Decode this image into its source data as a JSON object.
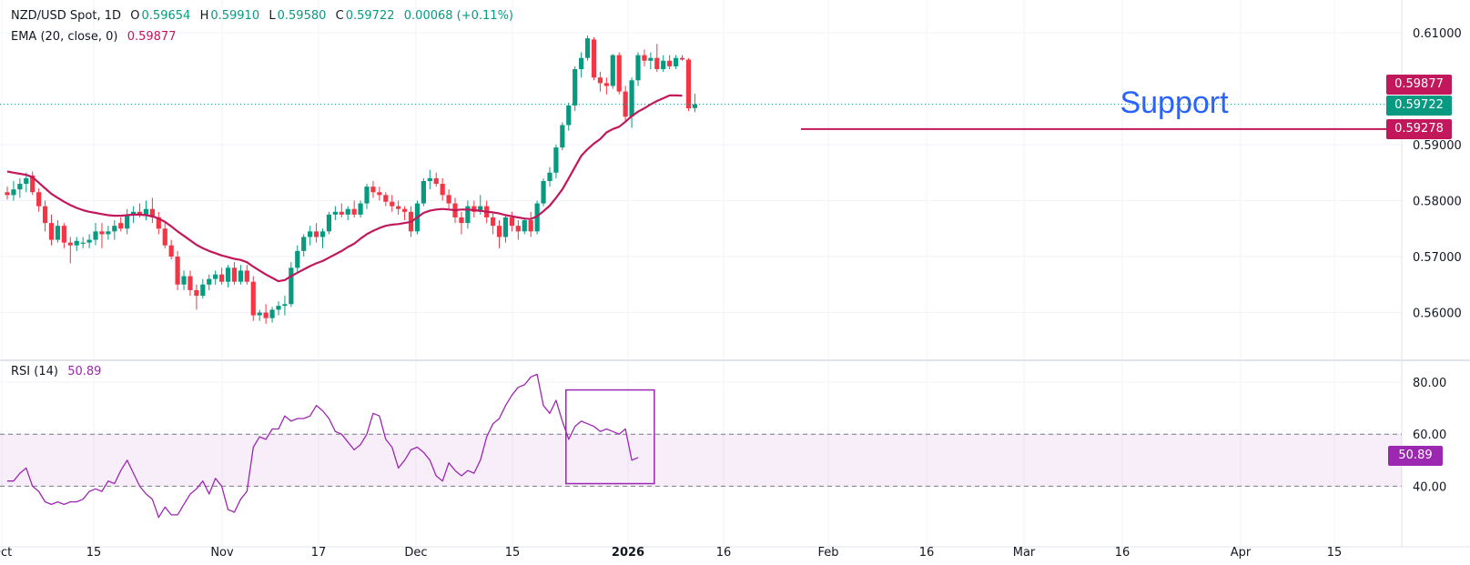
{
  "header": {
    "symbol": "NZD/USD Spot, 1D",
    "o_label": "O",
    "o_value": "0.59654",
    "h_label": "H",
    "h_value": "0.59910",
    "l_label": "L",
    "l_value": "0.59580",
    "c_label": "C",
    "c_value": "0.59722",
    "change": "0.00068 (+0.11%)",
    "ema_label": "EMA (20, close, 0)",
    "ema_value": "0.59877",
    "rsi_label": "RSI (14)",
    "rsi_value": "50.89"
  },
  "colors": {
    "up": "#089981",
    "down": "#f23645",
    "ema": "#c2185b",
    "rsi": "#9c27b0",
    "annotation": "#2962ff"
  },
  "chart_data": {
    "type": "candlestick",
    "price_axis": {
      "ticks": [
        "0.61000",
        "0.59000",
        "0.58000",
        "0.57000",
        "0.56000"
      ],
      "range": [
        0.554,
        0.6128
      ]
    },
    "rsi_axis": {
      "ticks": [
        "80.00",
        "60.00",
        "40.00"
      ],
      "range": [
        20,
        90
      ],
      "band": [
        40,
        60
      ]
    },
    "x_tick_labels": [
      "Oct",
      "15",
      "Nov",
      "17",
      "Dec",
      "15",
      "2026",
      "16",
      "Feb",
      "16",
      "Mar",
      "16",
      "Apr",
      "15"
    ],
    "price_tags": {
      "ema": "0.59877",
      "last": "0.59722",
      "support": "0.59278"
    },
    "support_level": 0.59278,
    "support_label": "Support",
    "last_close": 0.59722,
    "ohlc": [
      [
        0.5815,
        0.5825,
        0.5802,
        0.581
      ],
      [
        0.581,
        0.5835,
        0.58,
        0.582
      ],
      [
        0.582,
        0.584,
        0.5805,
        0.583
      ],
      [
        0.583,
        0.585,
        0.5815,
        0.584
      ],
      [
        0.5845,
        0.5852,
        0.581,
        0.5815
      ],
      [
        0.5815,
        0.5822,
        0.578,
        0.579
      ],
      [
        0.579,
        0.58,
        0.5745,
        0.576
      ],
      [
        0.576,
        0.5775,
        0.572,
        0.573
      ],
      [
        0.573,
        0.5765,
        0.5725,
        0.5755
      ],
      [
        0.5755,
        0.576,
        0.5715,
        0.5725
      ],
      [
        0.5725,
        0.5735,
        0.5688,
        0.572
      ],
      [
        0.572,
        0.5735,
        0.571,
        0.5728
      ],
      [
        0.5725,
        0.5735,
        0.5715,
        0.5725
      ],
      [
        0.5725,
        0.574,
        0.5715,
        0.573
      ],
      [
        0.573,
        0.576,
        0.572,
        0.5745
      ],
      [
        0.5745,
        0.576,
        0.5715,
        0.574
      ],
      [
        0.574,
        0.5755,
        0.573,
        0.5745
      ],
      [
        0.5745,
        0.5765,
        0.573,
        0.5755
      ],
      [
        0.576,
        0.577,
        0.5745,
        0.575
      ],
      [
        0.575,
        0.5785,
        0.574,
        0.5775
      ],
      [
        0.5775,
        0.579,
        0.576,
        0.578
      ],
      [
        0.578,
        0.5795,
        0.577,
        0.5775
      ],
      [
        0.5775,
        0.58,
        0.5765,
        0.5785
      ],
      [
        0.5785,
        0.5805,
        0.576,
        0.577
      ],
      [
        0.577,
        0.578,
        0.574,
        0.575
      ],
      [
        0.575,
        0.576,
        0.5715,
        0.572
      ],
      [
        0.572,
        0.573,
        0.5695,
        0.57
      ],
      [
        0.57,
        0.571,
        0.564,
        0.565
      ],
      [
        0.565,
        0.5675,
        0.564,
        0.5665
      ],
      [
        0.5665,
        0.5675,
        0.563,
        0.564
      ],
      [
        0.564,
        0.565,
        0.5605,
        0.563
      ],
      [
        0.563,
        0.566,
        0.5625,
        0.565
      ],
      [
        0.565,
        0.5668,
        0.564,
        0.566
      ],
      [
        0.566,
        0.5675,
        0.565,
        0.5668
      ],
      [
        0.5668,
        0.568,
        0.565,
        0.5655
      ],
      [
        0.5655,
        0.5685,
        0.5645,
        0.568
      ],
      [
        0.568,
        0.569,
        0.565,
        0.5655
      ],
      [
        0.5655,
        0.5685,
        0.565,
        0.5675
      ],
      [
        0.5675,
        0.5685,
        0.565,
        0.5655
      ],
      [
        0.5655,
        0.5665,
        0.5585,
        0.5595
      ],
      [
        0.5595,
        0.5605,
        0.5585,
        0.56
      ],
      [
        0.56,
        0.5615,
        0.558,
        0.559
      ],
      [
        0.559,
        0.561,
        0.5582,
        0.5605
      ],
      [
        0.5605,
        0.562,
        0.5595,
        0.5612
      ],
      [
        0.5612,
        0.563,
        0.5595,
        0.5615
      ],
      [
        0.5615,
        0.569,
        0.561,
        0.568
      ],
      [
        0.568,
        0.572,
        0.567,
        0.571
      ],
      [
        0.571,
        0.574,
        0.57,
        0.5735
      ],
      [
        0.5735,
        0.5755,
        0.572,
        0.5745
      ],
      [
        0.5745,
        0.576,
        0.5725,
        0.5735
      ],
      [
        0.5735,
        0.575,
        0.5715,
        0.5745
      ],
      [
        0.5745,
        0.578,
        0.574,
        0.5775
      ],
      [
        0.5775,
        0.579,
        0.5765,
        0.578
      ],
      [
        0.578,
        0.5795,
        0.577,
        0.5775
      ],
      [
        0.5775,
        0.579,
        0.5765,
        0.5785
      ],
      [
        0.5785,
        0.58,
        0.577,
        0.5775
      ],
      [
        0.5775,
        0.58,
        0.577,
        0.5795
      ],
      [
        0.5795,
        0.583,
        0.5785,
        0.5825
      ],
      [
        0.5825,
        0.5835,
        0.5805,
        0.5815
      ],
      [
        0.5815,
        0.5825,
        0.58,
        0.581
      ],
      [
        0.581,
        0.5815,
        0.579,
        0.5798
      ],
      [
        0.5798,
        0.581,
        0.578,
        0.579
      ],
      [
        0.579,
        0.58,
        0.5775,
        0.5785
      ],
      [
        0.5785,
        0.579,
        0.5765,
        0.578
      ],
      [
        0.578,
        0.579,
        0.5735,
        0.5745
      ],
      [
        0.5745,
        0.58,
        0.574,
        0.5795
      ],
      [
        0.5795,
        0.584,
        0.579,
        0.5835
      ],
      [
        0.5835,
        0.5855,
        0.582,
        0.584
      ],
      [
        0.584,
        0.585,
        0.5825,
        0.583
      ],
      [
        0.583,
        0.584,
        0.58,
        0.581
      ],
      [
        0.581,
        0.582,
        0.5785,
        0.5795
      ],
      [
        0.5795,
        0.5805,
        0.576,
        0.577
      ],
      [
        0.577,
        0.578,
        0.574,
        0.576
      ],
      [
        0.576,
        0.58,
        0.575,
        0.579
      ],
      [
        0.579,
        0.58,
        0.577,
        0.578
      ],
      [
        0.578,
        0.581,
        0.5775,
        0.579
      ],
      [
        0.579,
        0.58,
        0.576,
        0.577
      ],
      [
        0.577,
        0.578,
        0.574,
        0.5755
      ],
      [
        0.5755,
        0.5765,
        0.5715,
        0.5735
      ],
      [
        0.5735,
        0.5775,
        0.5725,
        0.577
      ],
      [
        0.577,
        0.578,
        0.5745,
        0.5755
      ],
      [
        0.5755,
        0.5765,
        0.573,
        0.5745
      ],
      [
        0.5745,
        0.577,
        0.574,
        0.5765
      ],
      [
        0.5765,
        0.578,
        0.5735,
        0.5745
      ],
      [
        0.5745,
        0.58,
        0.574,
        0.5795
      ],
      [
        0.5795,
        0.584,
        0.579,
        0.5835
      ],
      [
        0.5835,
        0.586,
        0.5825,
        0.585
      ],
      [
        0.585,
        0.59,
        0.584,
        0.5895
      ],
      [
        0.5895,
        0.594,
        0.589,
        0.5935
      ],
      [
        0.5935,
        0.5975,
        0.5925,
        0.597
      ],
      [
        0.597,
        0.604,
        0.596,
        0.6035
      ],
      [
        0.6035,
        0.6065,
        0.602,
        0.6055
      ],
      [
        0.6055,
        0.6095,
        0.605,
        0.609
      ],
      [
        0.6088,
        0.6092,
        0.6015,
        0.602
      ],
      [
        0.602,
        0.603,
        0.5995,
        0.601
      ],
      [
        0.601,
        0.602,
        0.599,
        0.6005
      ],
      [
        0.6005,
        0.6062,
        0.6,
        0.606
      ],
      [
        0.606,
        0.6065,
        0.599,
        0.5995
      ],
      [
        0.5995,
        0.6005,
        0.594,
        0.595
      ],
      [
        0.595,
        0.602,
        0.593,
        0.6015
      ],
      [
        0.6015,
        0.6065,
        0.6005,
        0.606
      ],
      [
        0.606,
        0.607,
        0.604,
        0.605
      ],
      [
        0.605,
        0.6065,
        0.6035,
        0.6055
      ],
      [
        0.6055,
        0.608,
        0.603,
        0.6035
      ],
      [
        0.6035,
        0.606,
        0.603,
        0.605
      ],
      [
        0.605,
        0.606,
        0.6035,
        0.604
      ],
      [
        0.604,
        0.606,
        0.6035,
        0.6055
      ],
      [
        0.6055,
        0.606,
        0.605,
        0.6052
      ],
      [
        0.6052,
        0.6055,
        0.596,
        0.5965
      ],
      [
        0.59654,
        0.5991,
        0.5958,
        0.59722
      ]
    ],
    "ema": [
      0.5852,
      0.585,
      0.5848,
      0.5846,
      0.5842,
      0.5832,
      0.5822,
      0.5812,
      0.5805,
      0.5798,
      0.5792,
      0.5787,
      0.5783,
      0.578,
      0.5778,
      0.5776,
      0.5774,
      0.5773,
      0.5773,
      0.5774,
      0.5775,
      0.5775,
      0.5774,
      0.5772,
      0.5768,
      0.5762,
      0.5754,
      0.5745,
      0.5737,
      0.5729,
      0.5721,
      0.5715,
      0.571,
      0.5706,
      0.5702,
      0.5699,
      0.5696,
      0.5694,
      0.569,
      0.5682,
      0.5675,
      0.5668,
      0.5662,
      0.5656,
      0.5658,
      0.5665,
      0.5671,
      0.5677,
      0.5683,
      0.5688,
      0.5692,
      0.5698,
      0.5704,
      0.571,
      0.5717,
      0.5723,
      0.5732,
      0.574,
      0.5746,
      0.5751,
      0.5755,
      0.5757,
      0.5758,
      0.576,
      0.5762,
      0.577,
      0.5778,
      0.5782,
      0.5784,
      0.5785,
      0.5784,
      0.5783,
      0.5784,
      0.5784,
      0.5783,
      0.5782,
      0.578,
      0.5779,
      0.5777,
      0.5774,
      0.5772,
      0.577,
      0.5768,
      0.5767,
      0.5772,
      0.5781,
      0.5791,
      0.5805,
      0.582,
      0.584,
      0.586,
      0.588,
      0.5892,
      0.5902,
      0.591,
      0.5922,
      0.5928,
      0.5932,
      0.5941,
      0.5951,
      0.5959,
      0.5965,
      0.5972,
      0.5978,
      0.5983,
      0.5988,
      0.5988,
      0.59877
    ],
    "rsi": [
      42,
      42,
      45,
      47,
      40,
      38,
      34,
      33,
      34,
      33,
      34,
      34,
      35,
      38,
      39,
      38,
      42,
      41,
      46,
      50,
      45,
      40,
      37,
      35,
      28,
      32,
      29,
      29,
      33,
      37,
      39,
      42,
      37,
      43,
      40,
      31,
      30,
      35,
      38,
      55,
      59,
      58,
      62,
      62,
      67,
      65,
      66,
      66,
      67,
      71,
      69,
      66,
      61,
      60,
      57,
      54,
      56,
      60,
      68,
      67,
      58,
      55,
      47,
      50,
      54,
      55,
      53,
      50,
      44,
      42,
      49,
      46,
      44,
      46,
      45,
      50,
      59,
      64,
      66,
      71,
      75,
      78,
      79,
      82,
      83,
      71,
      68,
      73,
      65,
      58,
      63,
      65,
      64,
      63,
      61,
      62,
      61,
      60,
      62,
      50,
      51
    ],
    "rsi_box": {
      "index_range": [
        89,
        102
      ],
      "value_range": [
        41,
        77
      ]
    }
  }
}
